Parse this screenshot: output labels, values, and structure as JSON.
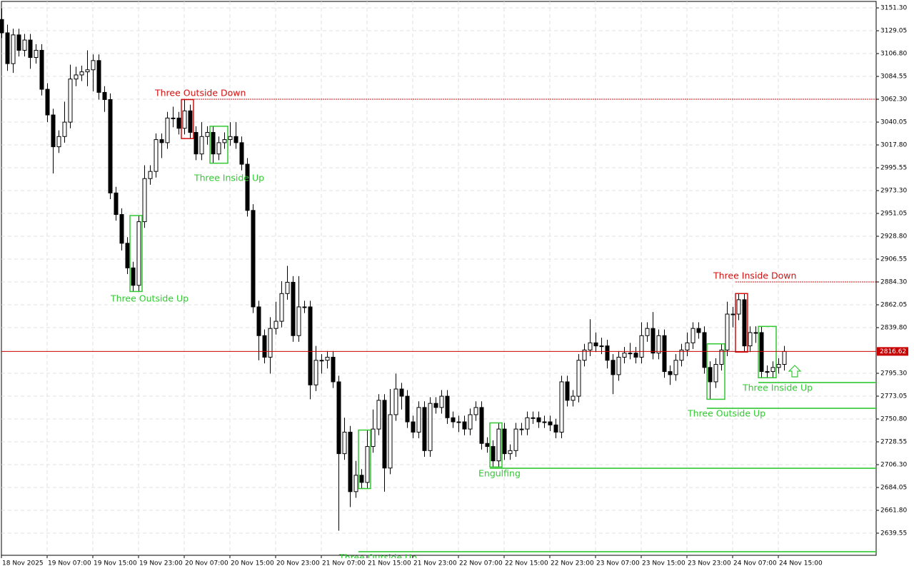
{
  "chart_data": {
    "type": "candlestick",
    "categories": [
      "18 Nov 2025",
      null,
      null,
      null,
      null,
      null,
      null,
      null,
      "19 Nov 07:00",
      null,
      null,
      null,
      null,
      null,
      null,
      null,
      "19 Nov 15:00",
      null,
      null,
      null,
      null,
      null,
      null,
      null,
      "19 Nov 23:00",
      null,
      null,
      null,
      null,
      null,
      null,
      null,
      "20 Nov 07:00",
      null,
      null,
      null,
      null,
      null,
      null,
      null,
      "20 Nov 15:00",
      null,
      null,
      null,
      null,
      null,
      null,
      null,
      "20 Nov 23:00",
      null,
      null,
      null,
      null,
      null,
      null,
      null,
      "21 Nov 07:00",
      null,
      null,
      null,
      null,
      null,
      null,
      null,
      "21 Nov 15:00",
      null,
      null,
      null,
      null,
      null,
      null,
      null,
      "21 Nov 23:00",
      null,
      null,
      null,
      null,
      null,
      null,
      null,
      "22 Nov 07:00",
      null,
      null,
      null,
      null,
      null,
      null,
      null,
      "22 Nov 15:00",
      null,
      null,
      null,
      null,
      null,
      null,
      null,
      "22 Nov 23:00",
      null,
      null,
      null,
      null,
      null,
      null,
      null,
      "23 Nov 07:00",
      null,
      null,
      null,
      null,
      null,
      null,
      null,
      "23 Nov 15:00",
      null,
      null,
      null,
      null,
      null,
      null,
      null,
      "23 Nov 23:00",
      null,
      null,
      null,
      null,
      null,
      null,
      null,
      "24 Nov 07:00",
      null,
      null,
      null,
      null,
      null,
      null,
      null,
      "24 Nov 15:00",
      null
    ],
    "open": [
      3140,
      3127,
      3097,
      3125,
      3110,
      3120,
      3103,
      3110,
      3072,
      3047,
      3016,
      3026,
      3040,
      3082,
      3086,
      3089,
      3091,
      3100,
      3069,
      3062,
      2971,
      2950,
      2922,
      2898,
      2881,
      2943,
      2985,
      2992,
      3023,
      3020,
      3044,
      3044,
      3034,
      3051,
      3030,
      3009,
      3026,
      3030,
      3009,
      3020,
      3023,
      3026,
      3020,
      2999,
      2954,
      2860,
      2832,
      2811,
      2839,
      2846,
      2873,
      2884,
      2832,
      2860,
      2860,
      2784,
      2808,
      2808,
      2811,
      2787,
      2717,
      2738,
      2680,
      2696,
      2689,
      2724,
      2741,
      2769,
      2703,
      2755,
      2780,
      2773,
      2748,
      2738,
      2762,
      2720,
      2766,
      2762,
      2773,
      2752,
      2748,
      2748,
      2741,
      2755,
      2762,
      2727,
      2724,
      2710,
      2741,
      2717,
      2720,
      2741,
      2741,
      2752,
      2752,
      2748,
      2748,
      2745,
      2738,
      2787,
      2769,
      2773,
      2808,
      2818,
      2825,
      2822,
      2822,
      2808,
      2794,
      2811,
      2815,
      2815,
      2811,
      2832,
      2839,
      2815,
      2832,
      2797,
      2794,
      2808,
      2818,
      2825,
      2839,
      2835,
      2801,
      2787,
      2804,
      2818,
      2853,
      2853,
      2867,
      2822,
      2835,
      2835,
      2797,
      2797,
      2801,
      2804
    ],
    "high": [
      3151,
      3135,
      3131,
      3131,
      3126,
      3126,
      3116,
      3116,
      3078,
      3053,
      3032,
      3060,
      3096,
      3094,
      3095,
      3110,
      3106,
      3106,
      3075,
      3068,
      2977,
      2956,
      2928,
      2904,
      2949,
      2998,
      2998,
      3029,
      3029,
      3050,
      3055,
      3050,
      3062,
      3057,
      3036,
      3040,
      3036,
      3036,
      3026,
      3030,
      3040,
      3040,
      3026,
      3005,
      2960,
      2866,
      2838,
      2850,
      2865,
      2885,
      2900,
      2890,
      2890,
      2866,
      2866,
      2822,
      2814,
      2817,
      2817,
      2793,
      2752,
      2744,
      2710,
      2702,
      2740,
      2760,
      2775,
      2775,
      2780,
      2795,
      2786,
      2779,
      2754,
      2768,
      2768,
      2772,
      2772,
      2779,
      2779,
      2758,
      2754,
      2754,
      2761,
      2768,
      2768,
      2733,
      2730,
      2747,
      2747,
      2726,
      2747,
      2747,
      2758,
      2758,
      2758,
      2754,
      2754,
      2751,
      2793,
      2793,
      2779,
      2814,
      2824,
      2848,
      2835,
      2830,
      2828,
      2814,
      2817,
      2821,
      2825,
      2821,
      2845,
      2845,
      2855,
      2838,
      2838,
      2803,
      2814,
      2824,
      2835,
      2845,
      2845,
      2841,
      2807,
      2810,
      2824,
      2865,
      2860,
      2873,
      2873,
      2841,
      2841,
      2841,
      2803,
      2807,
      2810,
      2822
    ],
    "low": [
      3122,
      3090,
      3088,
      3104,
      3104,
      3092,
      3097,
      3066,
      3040,
      2990,
      3010,
      3020,
      3034,
      3075,
      3080,
      3075,
      3070,
      3062,
      3050,
      2965,
      2944,
      2915,
      2892,
      2875,
      2875,
      2937,
      2979,
      2986,
      3005,
      3014,
      3035,
      3028,
      3028,
      3024,
      3003,
      3003,
      3018,
      3000,
      3003,
      3014,
      3017,
      3014,
      2993,
      2948,
      2854,
      2808,
      2805,
      2795,
      2833,
      2840,
      2867,
      2826,
      2826,
      2854,
      2770,
      2778,
      2795,
      2800,
      2781,
      2642,
      2711,
      2665,
      2674,
      2683,
      2683,
      2718,
      2735,
      2680,
      2697,
      2749,
      2760,
      2742,
      2732,
      2732,
      2714,
      2714,
      2756,
      2756,
      2746,
      2742,
      2738,
      2735,
      2735,
      2749,
      2721,
      2718,
      2704,
      2704,
      2711,
      2711,
      2714,
      2735,
      2735,
      2746,
      2742,
      2742,
      2739,
      2732,
      2732,
      2763,
      2763,
      2767,
      2802,
      2812,
      2816,
      2814,
      2800,
      2775,
      2788,
      2805,
      2809,
      2805,
      2805,
      2826,
      2809,
      2809,
      2791,
      2784,
      2788,
      2802,
      2812,
      2819,
      2829,
      2795,
      2770,
      2781,
      2798,
      2812,
      2840,
      2847,
      2816,
      2816,
      2825,
      2791,
      2791,
      2791,
      2795,
      2798
    ],
    "close": [
      3127,
      3097,
      3125,
      3110,
      3120,
      3103,
      3110,
      3072,
      3047,
      3016,
      3026,
      3040,
      3082,
      3086,
      3089,
      3091,
      3100,
      3069,
      3062,
      2971,
      2950,
      2922,
      2898,
      2881,
      2943,
      2985,
      2992,
      3023,
      3020,
      3044,
      3044,
      3034,
      3051,
      3030,
      3009,
      3026,
      3030,
      3009,
      3020,
      3023,
      3026,
      3020,
      2999,
      2954,
      2860,
      2832,
      2811,
      2839,
      2846,
      2873,
      2884,
      2832,
      2860,
      2860,
      2784,
      2808,
      2808,
      2811,
      2787,
      2717,
      2738,
      2680,
      2696,
      2689,
      2724,
      2741,
      2769,
      2703,
      2755,
      2780,
      2773,
      2748,
      2738,
      2762,
      2720,
      2766,
      2762,
      2773,
      2752,
      2748,
      2748,
      2741,
      2755,
      2762,
      2727,
      2724,
      2710,
      2741,
      2717,
      2720,
      2741,
      2741,
      2752,
      2752,
      2748,
      2748,
      2745,
      2738,
      2787,
      2769,
      2773,
      2808,
      2818,
      2825,
      2822,
      2822,
      2808,
      2794,
      2811,
      2815,
      2815,
      2811,
      2832,
      2839,
      2815,
      2832,
      2797,
      2794,
      2808,
      2818,
      2825,
      2839,
      2835,
      2801,
      2787,
      2804,
      2818,
      2853,
      2853,
      2867,
      2822,
      2835,
      2835,
      2797,
      2797,
      2801,
      2804,
      2816.62
    ],
    "up_color": "#ffffff",
    "down_color": "#000000",
    "ylim": [
      2618,
      3157.6
    ],
    "yticks": [
      {
        "value": 3151.3,
        "label": "3151.30"
      },
      {
        "value": 3129.05,
        "label": "3129.05"
      },
      {
        "value": 3106.8,
        "label": "3106.80"
      },
      {
        "value": 3084.55,
        "label": "3084.55"
      },
      {
        "value": 3062.3,
        "label": "3062.30"
      },
      {
        "value": 3040.05,
        "label": "3040.05"
      },
      {
        "value": 3017.8,
        "label": "3017.80"
      },
      {
        "value": 2995.55,
        "label": "2995.55"
      },
      {
        "value": 2973.3,
        "label": "2973.30"
      },
      {
        "value": 2951.05,
        "label": "2951.05"
      },
      {
        "value": 2928.8,
        "label": "2928.80"
      },
      {
        "value": 2906.55,
        "label": "2906.55"
      },
      {
        "value": 2884.3,
        "label": "2884.30"
      },
      {
        "value": 2862.05,
        "label": "2862.05"
      },
      {
        "value": 2839.8,
        "label": "2839.80"
      },
      {
        "value": 2795.3,
        "label": "2795.30"
      },
      {
        "value": 2773.05,
        "label": "2773.05"
      },
      {
        "value": 2750.8,
        "label": "2750.80"
      },
      {
        "value": 2728.55,
        "label": "2728.55"
      },
      {
        "value": 2706.3,
        "label": "2706.30"
      },
      {
        "value": 2684.05,
        "label": "2684.05"
      },
      {
        "value": 2661.8,
        "label": "2661.80"
      },
      {
        "value": 2639.55,
        "label": "2639.55"
      }
    ],
    "grid": true,
    "current_price": 2816.62,
    "current_price_color": "#c80000",
    "annotations": [
      {
        "label": "Three Outside Down",
        "color": "#d01010",
        "level": 3062.3
      },
      {
        "label": "Three Inside Up",
        "color": "#32c832"
      },
      {
        "label": "Three Outside Up",
        "color": "#32c832"
      },
      {
        "label": "Three Inside Down",
        "color": "#d01010",
        "level": 2884.3
      },
      {
        "label": "Three Inside Up",
        "color": "#32c832",
        "level": 2786.3
      },
      {
        "label": "Three Outside Up",
        "color": "#32c832",
        "level": 2761.2
      },
      {
        "label": "Engulfing",
        "color": "#32c832",
        "level": 2702.8
      },
      {
        "label": "Three Outside Up",
        "color": "#32c832",
        "level": 2621.5
      }
    ]
  }
}
